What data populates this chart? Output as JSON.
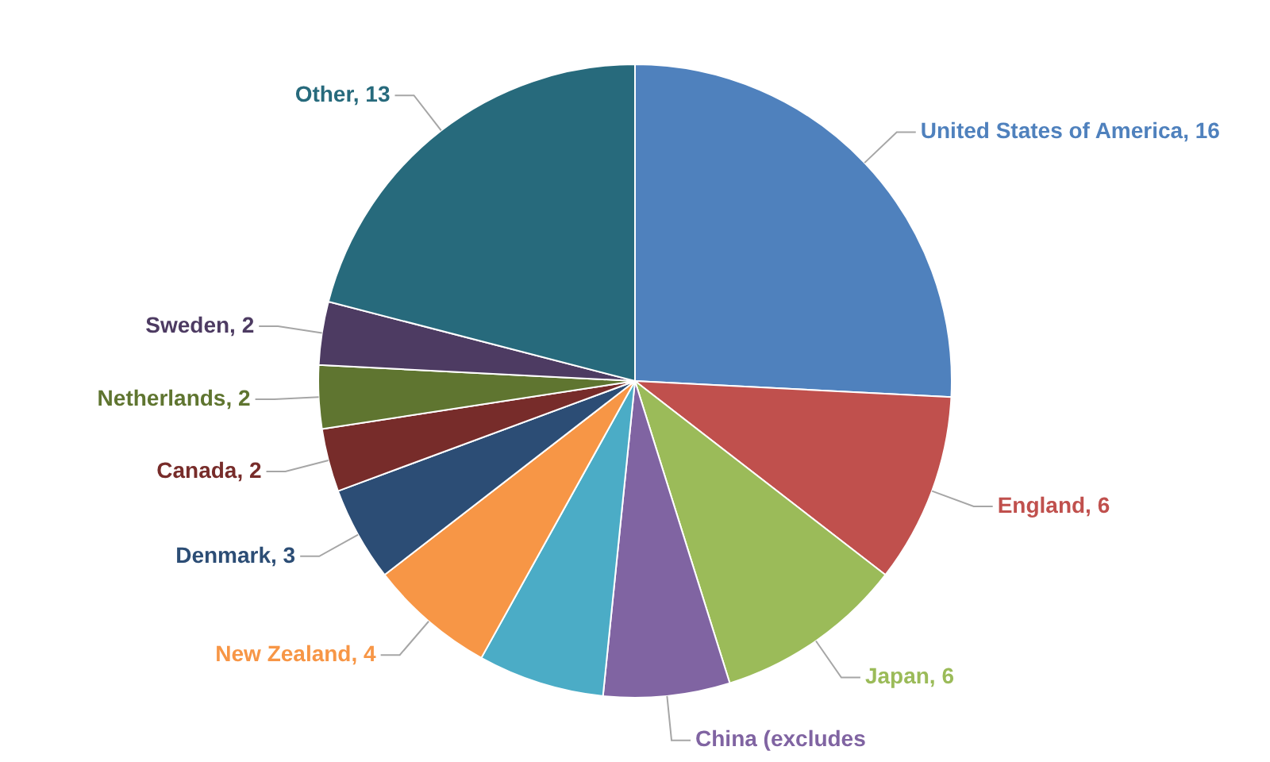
{
  "chart_data": {
    "type": "pie",
    "categories": [
      "United States of America",
      "England",
      "Japan",
      "China (excludes",
      null,
      "New Zealand",
      "Denmark",
      "Canada",
      "Netherlands",
      "Sweden",
      "Other"
    ],
    "values": [
      16,
      6,
      6,
      4,
      4,
      4,
      3,
      2,
      2,
      2,
      13
    ],
    "value_labels": [
      "16",
      "6",
      "6",
      null,
      null,
      "4",
      "3",
      "2",
      "2",
      "2",
      "13"
    ],
    "colors": [
      "#4f81bd",
      "#c0504d",
      "#9bbb59",
      "#8064a2",
      "#4bacc6",
      "#f79646",
      "#2c4d75",
      "#772c2a",
      "#5f7530",
      "#4d3b62",
      "#276a7c"
    ],
    "legend": false
  }
}
